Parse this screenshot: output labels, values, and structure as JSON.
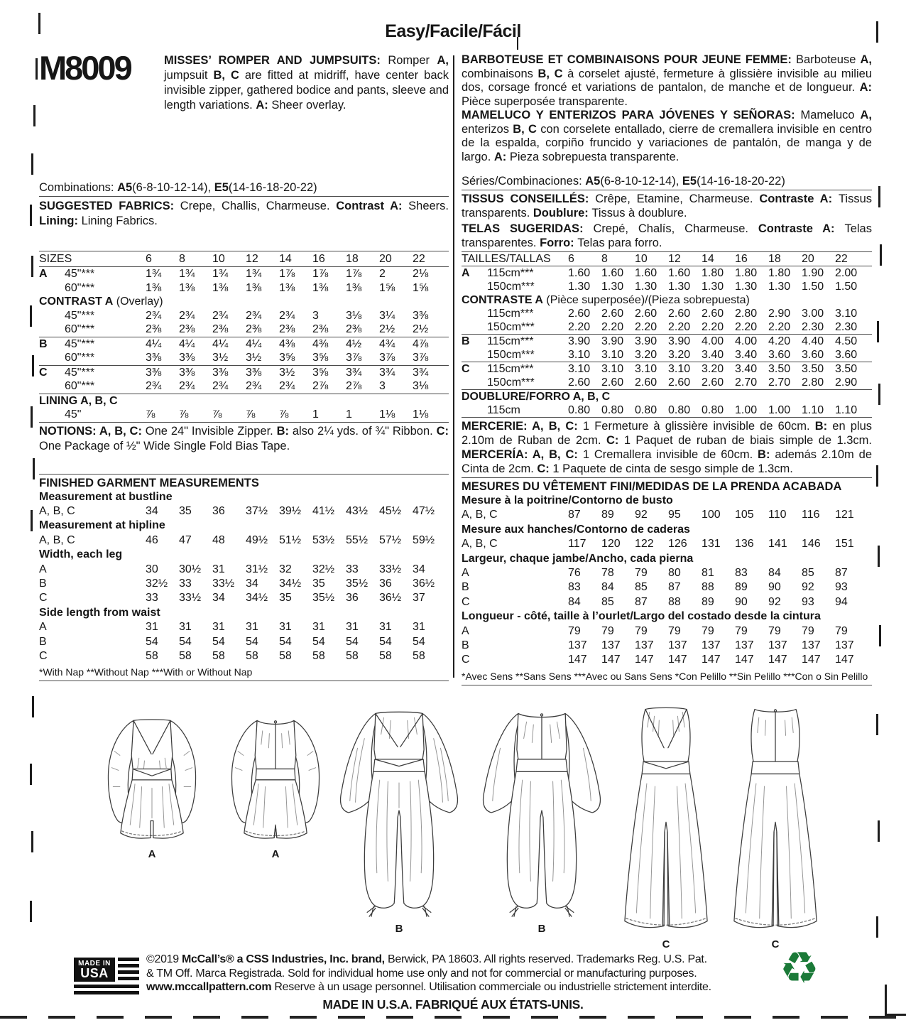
{
  "header": {
    "difficulty": "Easy/Facile/Fácil"
  },
  "brand": {
    "pattern_number": "M8009"
  },
  "left": {
    "description": [
      {
        "t": "MISSES’ ROMPER AND JUMPSUITS: ",
        "b": true
      },
      {
        "t": "Romper ",
        "b": false
      },
      {
        "t": "A,",
        "b": true
      },
      {
        "t": " jumpsuit ",
        "b": false
      },
      {
        "t": "B, C",
        "b": true
      },
      {
        "t": " are fitted at midriff, have center back invisible zipper, gathered bodice and pants, sleeve and length variations. ",
        "b": false
      },
      {
        "t": "A:",
        "b": true
      },
      {
        "t": " Sheer overlay.",
        "b": false
      }
    ],
    "combinations": [
      {
        "t": "Combinations: ",
        "b": false
      },
      {
        "t": "A5",
        "b": true
      },
      {
        "t": "(6-8-10-12-14), ",
        "b": false
      },
      {
        "t": "E5",
        "b": true
      },
      {
        "t": "(14-16-18-20-22)",
        "b": false
      }
    ],
    "fabrics": [
      {
        "t": "SUGGESTED FABRICS: ",
        "b": true
      },
      {
        "t": "Crepe, Challis, Charmeuse. ",
        "b": false
      },
      {
        "t": "Contrast A: ",
        "b": true
      },
      {
        "t": "Sheers. ",
        "b": false
      },
      {
        "t": "Lining: ",
        "b": true
      },
      {
        "t": "Lining Fabrics.",
        "b": false
      }
    ],
    "yardage_rows": [
      {
        "type": "head",
        "cells": [
          "SIZES",
          "6",
          "8",
          "10",
          "12",
          "14",
          "16",
          "18",
          "20",
          "22"
        ]
      },
      {
        "type": "data",
        "letter": "A",
        "lb": true,
        "name": "45\"***",
        "values": [
          "1¾",
          "1¾",
          "1¾",
          "1¾",
          "1⅞",
          "1⅞",
          "1⅞",
          "2",
          "2⅛"
        ]
      },
      {
        "type": "data",
        "letter": "",
        "name": "60\"***",
        "values": [
          "1⅜",
          "1⅜",
          "1⅜",
          "1⅜",
          "1⅜",
          "1⅜",
          "1⅜",
          "1⅝",
          "1⅝"
        ]
      },
      {
        "type": "section",
        "bold": "CONTRAST A",
        "rest": " (Overlay)"
      },
      {
        "type": "data",
        "letter": "",
        "name": "45\"***",
        "values": [
          "2¾",
          "2¾",
          "2¾",
          "2¾",
          "2¾",
          "3",
          "3⅛",
          "3¼",
          "3⅜"
        ]
      },
      {
        "type": "data",
        "letter": "",
        "name": "60\"***",
        "values": [
          "2⅜",
          "2⅜",
          "2⅜",
          "2⅜",
          "2⅜",
          "2⅜",
          "2⅜",
          "2½",
          "2½"
        ]
      },
      {
        "type": "data",
        "letter": "B",
        "lb": true,
        "name": "45\"***",
        "top": true,
        "values": [
          "4¼",
          "4¼",
          "4¼",
          "4¼",
          "4⅜",
          "4⅜",
          "4½",
          "4¾",
          "4⅞"
        ]
      },
      {
        "type": "data",
        "letter": "",
        "name": "60\"***",
        "values": [
          "3⅜",
          "3⅜",
          "3½",
          "3½",
          "3⅝",
          "3⅝",
          "3⅞",
          "3⅞",
          "3⅞"
        ]
      },
      {
        "type": "data",
        "letter": "C",
        "lb": true,
        "name": "45\"***",
        "top": true,
        "values": [
          "3⅜",
          "3⅜",
          "3⅜",
          "3⅜",
          "3½",
          "3⅝",
          "3¾",
          "3¾",
          "3¾"
        ]
      },
      {
        "type": "data",
        "letter": "",
        "name": "60\"***",
        "values": [
          "2¾",
          "2¾",
          "2¾",
          "2¾",
          "2¾",
          "2⅞",
          "2⅞",
          "3",
          "3⅛"
        ]
      },
      {
        "type": "section",
        "bold": "LINING A, B, C",
        "rest": "",
        "top": true
      },
      {
        "type": "data",
        "letter": "",
        "name": "45\"",
        "values": [
          "⅞",
          "⅞",
          "⅞",
          "⅞",
          "⅞",
          "1",
          "1",
          "1⅛",
          "1⅛"
        ]
      }
    ],
    "notions": [
      {
        "t": "NOTIONS: A, B, C: ",
        "b": true
      },
      {
        "t": "One 24\" Invisible Zipper. ",
        "b": false
      },
      {
        "t": "B: ",
        "b": true
      },
      {
        "t": "also 2¼ yds. of ¾\" Ribbon. ",
        "b": false
      },
      {
        "t": "C: ",
        "b": true
      },
      {
        "t": "One Package of ½\" Wide Single Fold Bias Tape.",
        "b": false
      }
    ],
    "finished_title": "FINISHED GARMENT MEASUREMENTS",
    "measure_rows": [
      {
        "type": "section",
        "bold": "Measurement at bustline",
        "rest": ""
      },
      {
        "type": "data",
        "letter": "A, B, C",
        "name": "",
        "values": [
          "34",
          "35",
          "36",
          "37½",
          "39½",
          "41½",
          "43½",
          "45½",
          "47½"
        ]
      },
      {
        "type": "section",
        "bold": "Measurement at hipline",
        "rest": ""
      },
      {
        "type": "data",
        "letter": "A, B, C",
        "name": "",
        "values": [
          "46",
          "47",
          "48",
          "49½",
          "51½",
          "53½",
          "55½",
          "57½",
          "59½"
        ]
      },
      {
        "type": "section",
        "bold": "Width, each leg",
        "rest": ""
      },
      {
        "type": "data",
        "letter": "A",
        "name": "",
        "values": [
          "30",
          "30½",
          "31",
          "31½",
          "32",
          "32½",
          "33",
          "33½",
          "34"
        ]
      },
      {
        "type": "data",
        "letter": "B",
        "name": "",
        "values": [
          "32½",
          "33",
          "33½",
          "34",
          "34½",
          "35",
          "35½",
          "36",
          "36½"
        ]
      },
      {
        "type": "data",
        "letter": "C",
        "name": "",
        "values": [
          "33",
          "33½",
          "34",
          "34½",
          "35",
          "35½",
          "36",
          "36½",
          "37"
        ]
      },
      {
        "type": "section",
        "bold": "Side length from waist",
        "rest": ""
      },
      {
        "type": "data",
        "letter": "A",
        "name": "",
        "values": [
          "31",
          "31",
          "31",
          "31",
          "31",
          "31",
          "31",
          "31",
          "31"
        ]
      },
      {
        "type": "data",
        "letter": "B",
        "name": "",
        "values": [
          "54",
          "54",
          "54",
          "54",
          "54",
          "54",
          "54",
          "54",
          "54"
        ]
      },
      {
        "type": "data",
        "letter": "C",
        "name": "",
        "values": [
          "58",
          "58",
          "58",
          "58",
          "58",
          "58",
          "58",
          "58",
          "58"
        ]
      }
    ],
    "footnote": "*With Nap **Without Nap ***With or Without Nap"
  },
  "right": {
    "description_fr": [
      {
        "t": "BARBOTEUSE ET COMBINAISONS POUR JEUNE FEMME: ",
        "b": true
      },
      {
        "t": "Barboteuse ",
        "b": false
      },
      {
        "t": "A,",
        "b": true
      },
      {
        "t": " combinaisons ",
        "b": false
      },
      {
        "t": "B, C",
        "b": true
      },
      {
        "t": " à corselet ajusté, fermeture à glissière invisible au milieu dos, corsage froncé et variations de pantalon, de manche et de longueur. ",
        "b": false
      },
      {
        "t": "A:",
        "b": true
      },
      {
        "t": " Pièce superposée transparente.",
        "b": false
      }
    ],
    "description_es": [
      {
        "t": "MAMELUCO Y ENTERIZOS PARA JÓVENES Y SEÑORAS: ",
        "b": true
      },
      {
        "t": "Mameluco ",
        "b": false
      },
      {
        "t": "A,",
        "b": true
      },
      {
        "t": " enterizos ",
        "b": false
      },
      {
        "t": "B, C",
        "b": true
      },
      {
        "t": " con corselete entallado, cierre de cremallera invisible en centro de la espalda, corpiño fruncido y variaciones de pantalón, de manga y de largo. ",
        "b": false
      },
      {
        "t": "A:",
        "b": true
      },
      {
        "t": " Pieza sobrepuesta transparente.",
        "b": false
      }
    ],
    "combinations": [
      {
        "t": "Séries/Combinaciones: ",
        "b": false
      },
      {
        "t": "A5",
        "b": true
      },
      {
        "t": "(6-8-10-12-14), ",
        "b": false
      },
      {
        "t": "E5",
        "b": true
      },
      {
        "t": "(14-16-18-20-22)",
        "b": false
      }
    ],
    "fabrics_fr": [
      {
        "t": "TISSUS CONSEILLÉS: ",
        "b": true
      },
      {
        "t": "Crêpe, Etamine, Charmeuse. ",
        "b": false
      },
      {
        "t": "Contraste A: ",
        "b": true
      },
      {
        "t": "Tissus transparents. ",
        "b": false
      },
      {
        "t": "Doublure: ",
        "b": true
      },
      {
        "t": "Tissus à doublure.",
        "b": false
      }
    ],
    "fabrics_es": [
      {
        "t": "TELAS SUGERIDAS: ",
        "b": true
      },
      {
        "t": "Crepé, Chalís, Charmeuse. ",
        "b": false
      },
      {
        "t": "Contraste A: ",
        "b": true
      },
      {
        "t": "Telas transparentes. ",
        "b": false
      },
      {
        "t": "Forro: ",
        "b": true
      },
      {
        "t": "Telas para forro.",
        "b": false
      }
    ],
    "yardage_rows": [
      {
        "type": "head",
        "cells": [
          "TAILLES/TALLAS",
          "6",
          "8",
          "10",
          "12",
          "14",
          "16",
          "18",
          "20",
          "22"
        ]
      },
      {
        "type": "data",
        "letter": "A",
        "lb": true,
        "name": "115cm***",
        "values": [
          "1.60",
          "1.60",
          "1.60",
          "1.60",
          "1.80",
          "1.80",
          "1.80",
          "1.90",
          "2.00"
        ]
      },
      {
        "type": "data",
        "letter": "",
        "name": "150cm***",
        "values": [
          "1.30",
          "1.30",
          "1.30",
          "1.30",
          "1.30",
          "1.30",
          "1.30",
          "1.50",
          "1.50"
        ]
      },
      {
        "type": "section",
        "bold": "CONTRASTE A",
        "rest": " (Pièce superposée)/(Pieza sobrepuesta)"
      },
      {
        "type": "data",
        "letter": "",
        "name": "115cm***",
        "values": [
          "2.60",
          "2.60",
          "2.60",
          "2.60",
          "2.60",
          "2.80",
          "2.90",
          "3.00",
          "3.10"
        ]
      },
      {
        "type": "data",
        "letter": "",
        "name": "150cm***",
        "values": [
          "2.20",
          "2.20",
          "2.20",
          "2.20",
          "2.20",
          "2.20",
          "2.20",
          "2.30",
          "2.30"
        ]
      },
      {
        "type": "data",
        "letter": "B",
        "lb": true,
        "name": "115cm***",
        "top": true,
        "values": [
          "3.90",
          "3.90",
          "3.90",
          "3.90",
          "4.00",
          "4.00",
          "4.20",
          "4.40",
          "4.50"
        ]
      },
      {
        "type": "data",
        "letter": "",
        "name": "150cm***",
        "values": [
          "3.10",
          "3.10",
          "3.20",
          "3.20",
          "3.40",
          "3.40",
          "3.60",
          "3.60",
          "3.60"
        ]
      },
      {
        "type": "data",
        "letter": "C",
        "lb": true,
        "name": "115cm***",
        "top": true,
        "values": [
          "3.10",
          "3.10",
          "3.10",
          "3.10",
          "3.20",
          "3.40",
          "3.50",
          "3.50",
          "3.50"
        ]
      },
      {
        "type": "data",
        "letter": "",
        "name": "150cm***",
        "values": [
          "2.60",
          "2.60",
          "2.60",
          "2.60",
          "2.60",
          "2.70",
          "2.70",
          "2.80",
          "2.90"
        ]
      },
      {
        "type": "section",
        "bold": "DOUBLURE/FORRO A, B, C",
        "rest": "",
        "top": true
      },
      {
        "type": "data",
        "letter": "",
        "name": "115cm",
        "values": [
          "0.80",
          "0.80",
          "0.80",
          "0.80",
          "0.80",
          "1.00",
          "1.00",
          "1.10",
          "1.10"
        ]
      }
    ],
    "mercerie": [
      {
        "t": "MERCERIE: A, B, C: ",
        "b": true
      },
      {
        "t": "1 Fermeture à glissière invisible de 60cm. ",
        "b": false
      },
      {
        "t": "B: ",
        "b": true
      },
      {
        "t": "en plus 2.10m de Ruban de 2cm. ",
        "b": false
      },
      {
        "t": "C: ",
        "b": true
      },
      {
        "t": "1 Paquet de ruban de biais simple de 1.3cm. ",
        "b": false
      },
      {
        "t": "MERCERÍA: A, B, C: ",
        "b": true
      },
      {
        "t": "1 Cremallera invisible de 60cm. ",
        "b": false
      },
      {
        "t": "B: ",
        "b": true
      },
      {
        "t": "además 2.10m de Cinta de 2cm. ",
        "b": false
      },
      {
        "t": "C: ",
        "b": true
      },
      {
        "t": "1 Paquete de cinta de sesgo simple de 1.3cm.",
        "b": false
      }
    ],
    "finished_title": "MESURES DU VÊTEMENT FINI/MEDIDAS DE LA PRENDA ACABADA",
    "measure_rows": [
      {
        "type": "section",
        "bold": "Mesure à la poitrine/Contorno de busto",
        "rest": ""
      },
      {
        "type": "data",
        "letter": "A, B, C",
        "name": "",
        "values": [
          "87",
          "89",
          "92",
          "95",
          "100",
          "105",
          "110",
          "116",
          "121"
        ]
      },
      {
        "type": "section",
        "bold": "Mesure aux hanches/Contorno de caderas",
        "rest": ""
      },
      {
        "type": "data",
        "letter": "A, B, C",
        "name": "",
        "values": [
          "117",
          "120",
          "122",
          "126",
          "131",
          "136",
          "141",
          "146",
          "151"
        ]
      },
      {
        "type": "section",
        "bold": "Largeur, chaque jambe/Ancho, cada pierna",
        "rest": ""
      },
      {
        "type": "data",
        "letter": "A",
        "name": "",
        "values": [
          "76",
          "78",
          "79",
          "80",
          "81",
          "83",
          "84",
          "85",
          "87"
        ]
      },
      {
        "type": "data",
        "letter": "B",
        "name": "",
        "values": [
          "83",
          "84",
          "85",
          "87",
          "88",
          "89",
          "90",
          "92",
          "93"
        ]
      },
      {
        "type": "data",
        "letter": "C",
        "name": "",
        "values": [
          "84",
          "85",
          "87",
          "88",
          "89",
          "90",
          "92",
          "93",
          "94"
        ]
      },
      {
        "type": "section",
        "bold": "Longueur - côté, taille à l’ourlet/Largo del costado desde la cintura",
        "rest": ""
      },
      {
        "type": "data",
        "letter": "A",
        "name": "",
        "values": [
          "79",
          "79",
          "79",
          "79",
          "79",
          "79",
          "79",
          "79",
          "79"
        ]
      },
      {
        "type": "data",
        "letter": "B",
        "name": "",
        "values": [
          "137",
          "137",
          "137",
          "137",
          "137",
          "137",
          "137",
          "137",
          "137"
        ]
      },
      {
        "type": "data",
        "letter": "C",
        "name": "",
        "values": [
          "147",
          "147",
          "147",
          "147",
          "147",
          "147",
          "147",
          "147",
          "147"
        ]
      }
    ],
    "footnote": "*Avec Sens **Sans Sens ***Avec ou Sans Sens   *Con Pelillo **Sin Pelillo ***Con o Sin Pelillo"
  },
  "figures": [
    {
      "label": "A"
    },
    {
      "label": "A"
    },
    {
      "label": "B"
    },
    {
      "label": "B"
    },
    {
      "label": "C"
    },
    {
      "label": "C"
    }
  ],
  "footer": {
    "line1": [
      {
        "t": "©2019 ",
        "b": false
      },
      {
        "t": "McCall’s® a CSS Industries, Inc. brand,",
        "b": true
      },
      {
        "t": " Berwick, PA 18603. All rights reserved. Trademarks Reg. U.S. Pat.",
        "b": false
      }
    ],
    "line2": [
      {
        "t": "& TM Off. Marca Registrada. Sold for individual home use only and not for commercial or manufacturing purposes.",
        "b": false
      }
    ],
    "line3": [
      {
        "t": "www.mccallpattern.com",
        "b": true
      },
      {
        "t": "  Reserve à un usage personnel. Utilisation commerciale ou industrielle strictement interdite.",
        "b": false
      }
    ],
    "made_in": "MADE IN U.S.A.  FABRIQUÉ AUX ÉTATS-UNIS.",
    "flag": {
      "top": "MADE IN",
      "bottom": "USA"
    },
    "recycle_icon": "♻"
  }
}
